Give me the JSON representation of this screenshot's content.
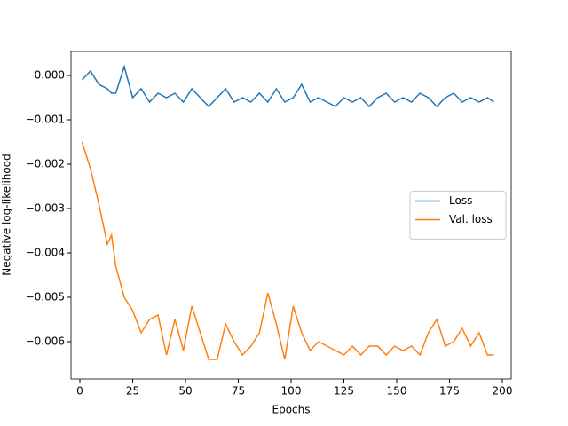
{
  "chart_data": {
    "type": "line",
    "xlabel": "Epochs",
    "ylabel": "Negative log-likelihood",
    "x": [
      1,
      5,
      9,
      13,
      15,
      17,
      21,
      25,
      29,
      33,
      37,
      41,
      45,
      49,
      53,
      57,
      61,
      65,
      69,
      73,
      77,
      81,
      85,
      89,
      93,
      97,
      101,
      105,
      109,
      113,
      117,
      121,
      125,
      129,
      133,
      137,
      141,
      145,
      149,
      153,
      157,
      161,
      165,
      169,
      173,
      177,
      181,
      185,
      189,
      193,
      196
    ],
    "series": [
      {
        "name": "Loss",
        "color": "#1f77b4",
        "values": [
          -0.0001,
          0.0001,
          -0.0002,
          -0.0003,
          -0.0004,
          -0.0004,
          0.0002,
          -0.0005,
          -0.0003,
          -0.0006,
          -0.0004,
          -0.0005,
          -0.0004,
          -0.0006,
          -0.0003,
          -0.0005,
          -0.0007,
          -0.0005,
          -0.0003,
          -0.0006,
          -0.0005,
          -0.0006,
          -0.0004,
          -0.0006,
          -0.0003,
          -0.0006,
          -0.0005,
          -0.0002,
          -0.0006,
          -0.0005,
          -0.0006,
          -0.0007,
          -0.0005,
          -0.0006,
          -0.0005,
          -0.0007,
          -0.0005,
          -0.0004,
          -0.0006,
          -0.0005,
          -0.0006,
          -0.0004,
          -0.0005,
          -0.0007,
          -0.0005,
          -0.0004,
          -0.0006,
          -0.0005,
          -0.0006,
          -0.0005,
          -0.0006
        ]
      },
      {
        "name": "Val. loss",
        "color": "#ff7f0e",
        "values": [
          -0.0015,
          -0.0021,
          -0.0029,
          -0.0038,
          -0.0036,
          -0.0043,
          -0.005,
          -0.0053,
          -0.0058,
          -0.0055,
          -0.0054,
          -0.0063,
          -0.0055,
          -0.0062,
          -0.0052,
          -0.0058,
          -0.0064,
          -0.0064,
          -0.0056,
          -0.006,
          -0.0063,
          -0.0061,
          -0.0058,
          -0.0049,
          -0.0056,
          -0.0064,
          -0.0052,
          -0.0058,
          -0.0062,
          -0.006,
          -0.0061,
          -0.0062,
          -0.0063,
          -0.0061,
          -0.0063,
          -0.0061,
          -0.0061,
          -0.0063,
          -0.0061,
          -0.0062,
          -0.0061,
          -0.0063,
          -0.0058,
          -0.0055,
          -0.0061,
          -0.006,
          -0.0057,
          -0.0061,
          -0.0058,
          -0.0063,
          -0.0063
        ]
      }
    ],
    "xlim": [
      -4.2,
      204.2
    ],
    "ylim": [
      -0.00684,
      0.00054
    ],
    "xticks": [
      0,
      25,
      50,
      75,
      100,
      125,
      150,
      175,
      200
    ],
    "yticks": [
      {
        "value": 0,
        "label": "0.000"
      },
      {
        "value": -0.001,
        "label": "−0.001"
      },
      {
        "value": -0.002,
        "label": "−0.002"
      },
      {
        "value": -0.003,
        "label": "−0.003"
      },
      {
        "value": -0.004,
        "label": "−0.004"
      },
      {
        "value": -0.005,
        "label": "−0.005"
      },
      {
        "value": -0.006,
        "label": "−0.006"
      }
    ],
    "legend": "center right",
    "grid": false
  }
}
